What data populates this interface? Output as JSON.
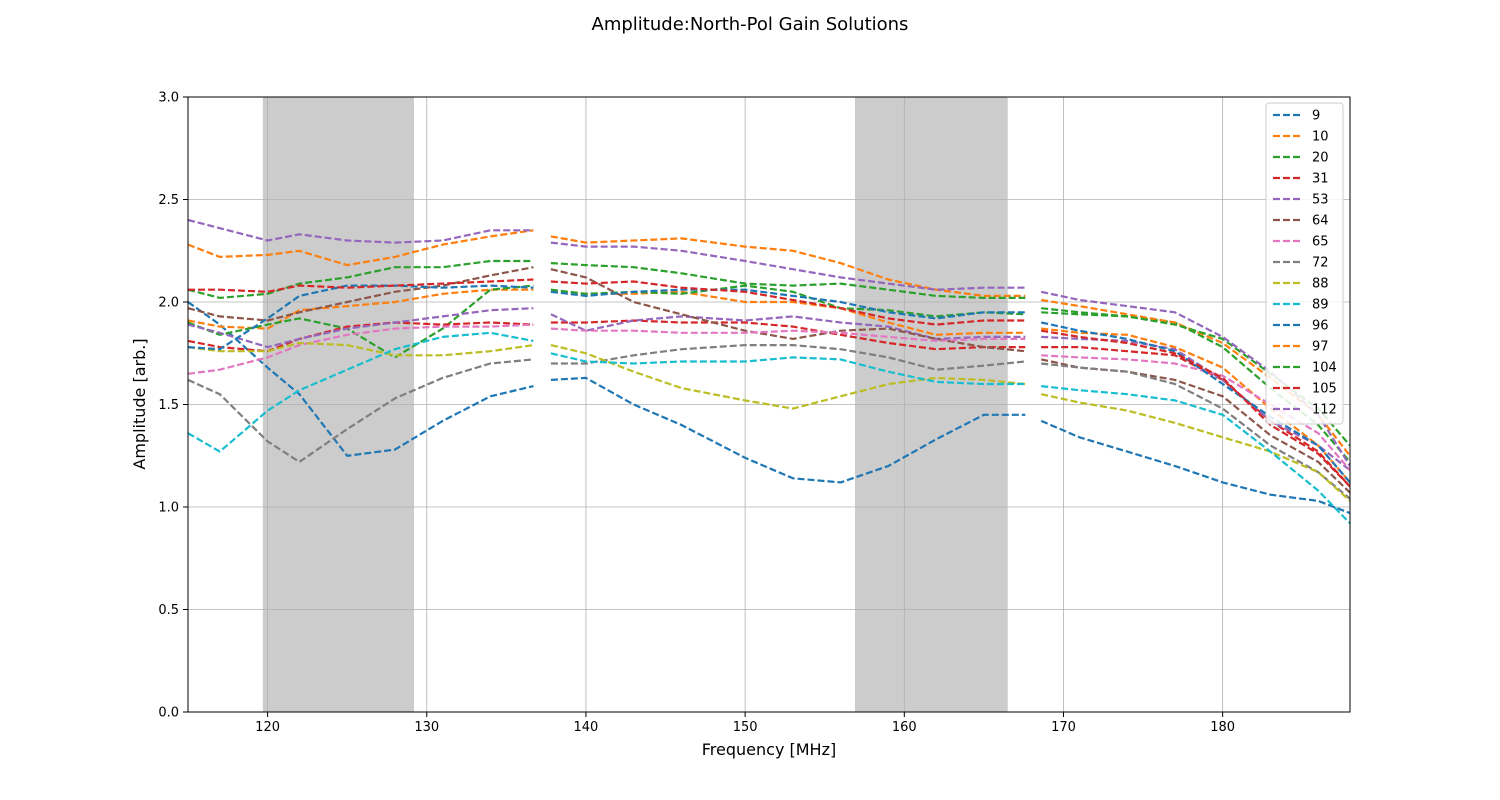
{
  "chart_data": {
    "type": "line",
    "title": "Amplitude:North-Pol Gain Solutions",
    "xlabel": "Frequency [MHz]",
    "ylabel": "Amplitude [arb.]",
    "xlim": [
      115,
      188
    ],
    "ylim": [
      0.0,
      3.0
    ],
    "x_ticks": [
      120,
      130,
      140,
      150,
      160,
      170,
      180
    ],
    "x_tick_labels": [
      "120",
      "130",
      "140",
      "150",
      "160",
      "170",
      "180"
    ],
    "y_ticks": [
      0.0,
      0.5,
      1.0,
      1.5,
      2.0,
      2.5,
      3.0
    ],
    "y_tick_labels": [
      "0.0",
      "0.5",
      "1.0",
      "1.5",
      "2.0",
      "2.5",
      "3.0"
    ],
    "grid": true,
    "legend_position": "top-right",
    "line_style": "dashed",
    "shaded_bands": [
      {
        "x0": 119.7,
        "x1": 129.2,
        "color": "#cccccc"
      },
      {
        "x0": 156.9,
        "x1": 166.5,
        "color": "#cccccc"
      }
    ],
    "gaps": [
      [
        136.7,
        137.8
      ],
      [
        167.6,
        168.6
      ]
    ],
    "x": [
      115,
      117,
      120,
      122,
      125,
      128,
      131,
      134,
      136.7,
      137.8,
      140,
      143,
      146,
      150,
      153,
      156,
      159,
      162,
      165,
      167.6,
      168.6,
      171,
      174,
      177,
      180,
      183,
      186,
      188
    ],
    "series": [
      {
        "name": "9",
        "color": "#1f77b4",
        "values": [
          2.0,
          1.89,
          1.68,
          1.55,
          1.25,
          1.28,
          1.42,
          1.54,
          1.59,
          1.62,
          1.63,
          1.5,
          1.4,
          1.24,
          1.14,
          1.12,
          1.2,
          1.33,
          1.45,
          1.45,
          1.42,
          1.34,
          1.27,
          1.2,
          1.12,
          1.06,
          1.03,
          0.97
        ]
      },
      {
        "name": "10",
        "color": "#ff7f0e",
        "values": [
          1.91,
          1.88,
          1.87,
          1.96,
          1.98,
          2.0,
          2.04,
          2.06,
          2.06,
          2.05,
          2.04,
          2.04,
          2.05,
          2.0,
          2.0,
          1.97,
          1.9,
          1.84,
          1.85,
          1.85,
          1.87,
          1.85,
          1.84,
          1.78,
          1.68,
          1.48,
          1.3,
          1.12
        ]
      },
      {
        "name": "20",
        "color": "#2ca02c",
        "values": [
          1.9,
          1.84,
          1.89,
          1.92,
          1.87,
          1.73,
          1.87,
          2.06,
          2.08,
          2.06,
          2.04,
          2.05,
          2.04,
          2.08,
          2.05,
          1.97,
          1.96,
          1.93,
          1.95,
          1.94,
          1.95,
          1.94,
          1.93,
          1.9,
          1.78,
          1.58,
          1.4,
          1.22
        ]
      },
      {
        "name": "31",
        "color": "#d62728",
        "values": [
          1.81,
          1.78,
          1.76,
          1.82,
          1.88,
          1.9,
          1.89,
          1.9,
          1.89,
          1.9,
          1.9,
          1.91,
          1.9,
          1.9,
          1.88,
          1.84,
          1.8,
          1.77,
          1.78,
          1.78,
          1.78,
          1.78,
          1.76,
          1.74,
          1.62,
          1.42,
          1.27,
          1.1
        ]
      },
      {
        "name": "53",
        "color": "#9467bd",
        "values": [
          1.89,
          1.85,
          1.78,
          1.82,
          1.87,
          1.9,
          1.93,
          1.96,
          1.97,
          1.94,
          1.86,
          1.91,
          1.93,
          1.91,
          1.93,
          1.9,
          1.88,
          1.82,
          1.83,
          1.83,
          1.83,
          1.82,
          1.81,
          1.77,
          1.62,
          1.42,
          1.3,
          1.18
        ]
      },
      {
        "name": "64",
        "color": "#8c564b",
        "values": [
          1.97,
          1.93,
          1.91,
          1.95,
          2.0,
          2.05,
          2.08,
          2.13,
          2.17,
          2.16,
          2.12,
          2.0,
          1.94,
          1.86,
          1.82,
          1.86,
          1.87,
          1.82,
          1.78,
          1.76,
          1.72,
          1.68,
          1.66,
          1.62,
          1.54,
          1.35,
          1.22,
          1.07
        ]
      },
      {
        "name": "65",
        "color": "#e377c2",
        "values": [
          1.65,
          1.67,
          1.73,
          1.79,
          1.84,
          1.87,
          1.88,
          1.88,
          1.89,
          1.87,
          1.86,
          1.86,
          1.85,
          1.85,
          1.86,
          1.85,
          1.83,
          1.81,
          1.82,
          1.82,
          1.74,
          1.73,
          1.72,
          1.7,
          1.64,
          1.5,
          1.36,
          1.18
        ]
      },
      {
        "name": "72",
        "color": "#7f7f7f",
        "values": [
          1.62,
          1.55,
          1.32,
          1.22,
          1.38,
          1.53,
          1.63,
          1.7,
          1.72,
          1.7,
          1.7,
          1.74,
          1.77,
          1.79,
          1.79,
          1.77,
          1.73,
          1.67,
          1.69,
          1.71,
          1.7,
          1.68,
          1.66,
          1.6,
          1.48,
          1.3,
          1.17,
          1.04
        ]
      },
      {
        "name": "88",
        "color": "#bcbd22",
        "values": [
          1.78,
          1.76,
          1.76,
          1.8,
          1.79,
          1.74,
          1.74,
          1.76,
          1.79,
          1.79,
          1.75,
          1.66,
          1.58,
          1.52,
          1.48,
          1.54,
          1.6,
          1.63,
          1.62,
          1.6,
          1.55,
          1.51,
          1.47,
          1.41,
          1.34,
          1.27,
          1.17,
          1.03
        ]
      },
      {
        "name": "89",
        "color": "#17becf",
        "values": [
          1.36,
          1.27,
          1.47,
          1.57,
          1.67,
          1.77,
          1.83,
          1.85,
          1.81,
          1.75,
          1.71,
          1.7,
          1.71,
          1.71,
          1.73,
          1.72,
          1.66,
          1.61,
          1.6,
          1.6,
          1.59,
          1.57,
          1.55,
          1.52,
          1.45,
          1.27,
          1.08,
          0.92
        ]
      },
      {
        "name": "96",
        "color": "#1f77b4",
        "values": [
          1.78,
          1.77,
          1.92,
          2.03,
          2.08,
          2.08,
          2.07,
          2.08,
          2.07,
          2.05,
          2.03,
          2.05,
          2.06,
          2.06,
          2.03,
          2.0,
          1.95,
          1.92,
          1.95,
          1.95,
          1.9,
          1.86,
          1.82,
          1.76,
          1.6,
          1.44,
          1.3,
          1.12
        ]
      },
      {
        "name": "97",
        "color": "#ff7f0e",
        "values": [
          2.28,
          2.22,
          2.23,
          2.25,
          2.18,
          2.22,
          2.28,
          2.32,
          2.35,
          2.32,
          2.29,
          2.3,
          2.31,
          2.27,
          2.25,
          2.19,
          2.11,
          2.06,
          2.03,
          2.03,
          2.01,
          1.98,
          1.94,
          1.9,
          1.8,
          1.63,
          1.45,
          1.25
        ]
      },
      {
        "name": "104",
        "color": "#2ca02c",
        "values": [
          2.06,
          2.02,
          2.04,
          2.09,
          2.12,
          2.17,
          2.17,
          2.2,
          2.2,
          2.19,
          2.18,
          2.17,
          2.14,
          2.09,
          2.08,
          2.09,
          2.06,
          2.03,
          2.02,
          2.02,
          1.97,
          1.95,
          1.93,
          1.89,
          1.82,
          1.65,
          1.48,
          1.3
        ]
      },
      {
        "name": "105",
        "color": "#d62728",
        "values": [
          2.06,
          2.06,
          2.05,
          2.08,
          2.07,
          2.08,
          2.09,
          2.1,
          2.11,
          2.1,
          2.09,
          2.1,
          2.07,
          2.05,
          2.01,
          1.97,
          1.92,
          1.89,
          1.91,
          1.91,
          1.86,
          1.83,
          1.8,
          1.75,
          1.63,
          1.4,
          1.26,
          1.1
        ]
      },
      {
        "name": "112",
        "color": "#9467bd",
        "values": [
          2.4,
          2.36,
          2.3,
          2.33,
          2.3,
          2.29,
          2.3,
          2.35,
          2.35,
          2.29,
          2.27,
          2.27,
          2.25,
          2.2,
          2.16,
          2.12,
          2.09,
          2.06,
          2.07,
          2.07,
          2.05,
          2.01,
          1.98,
          1.95,
          1.83,
          1.66,
          1.45,
          1.2
        ]
      }
    ]
  }
}
